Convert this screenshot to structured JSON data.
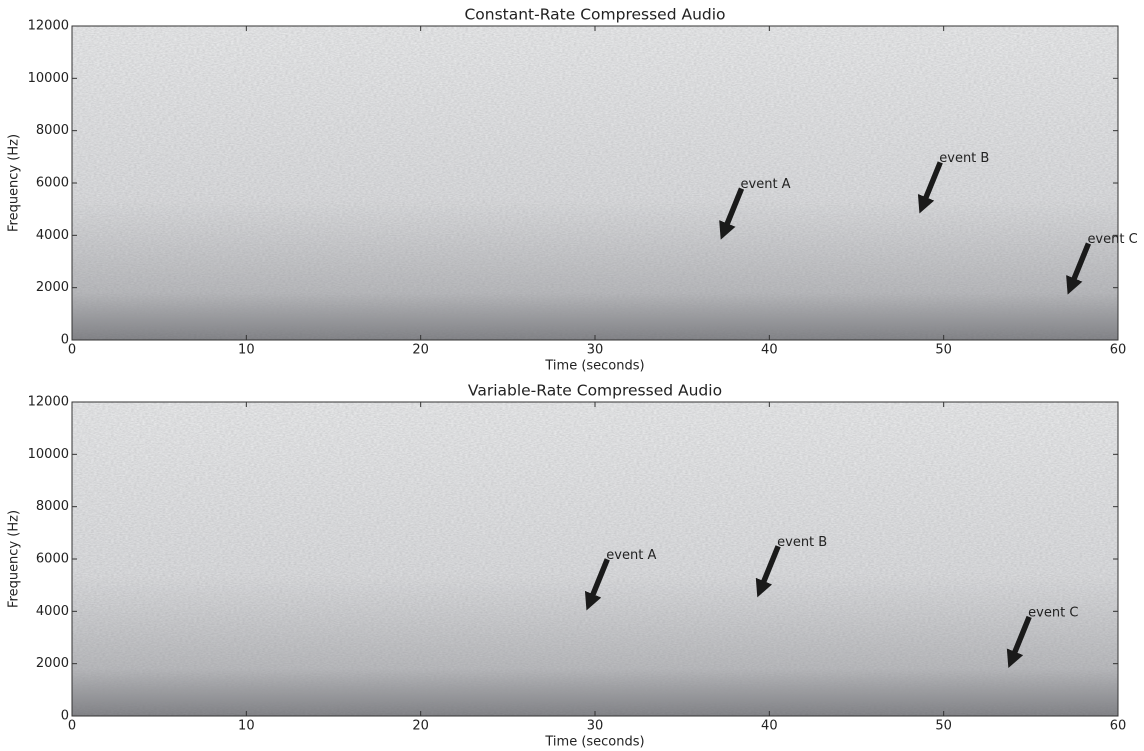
{
  "chart_data": [
    {
      "type": "spectrogram",
      "title": "Constant-Rate Compressed Audio",
      "x_label": "Time (seconds)",
      "y_label": "Frequency (Hz)",
      "xlim": [
        0,
        60
      ],
      "ylim": [
        0,
        12000
      ],
      "xticks": [
        0,
        10,
        20,
        30,
        40,
        50,
        60
      ],
      "yticks": [
        0,
        2000,
        4000,
        6000,
        8000,
        10000,
        12000
      ],
      "annotations": [
        {
          "text": "event A",
          "xy": [
            37.2,
            3800
          ]
        },
        {
          "text": "event B",
          "xy": [
            48.6,
            4800
          ]
        },
        {
          "text": "event C",
          "xy": [
            57.1,
            1700
          ]
        }
      ]
    },
    {
      "type": "spectrogram",
      "title": "Variable-Rate Compressed Audio",
      "x_label": "Time (seconds)",
      "y_label": "Frequency (Hz)",
      "xlim": [
        0,
        60
      ],
      "ylim": [
        0,
        12000
      ],
      "xticks": [
        0,
        10,
        20,
        30,
        40,
        50,
        60
      ],
      "yticks": [
        0,
        2000,
        4000,
        6000,
        8000,
        10000,
        12000
      ],
      "annotations": [
        {
          "text": "event A",
          "xy": [
            29.5,
            4000
          ]
        },
        {
          "text": "event B",
          "xy": [
            39.3,
            4500
          ]
        },
        {
          "text": "event C",
          "xy": [
            53.7,
            1800
          ]
        }
      ]
    }
  ]
}
